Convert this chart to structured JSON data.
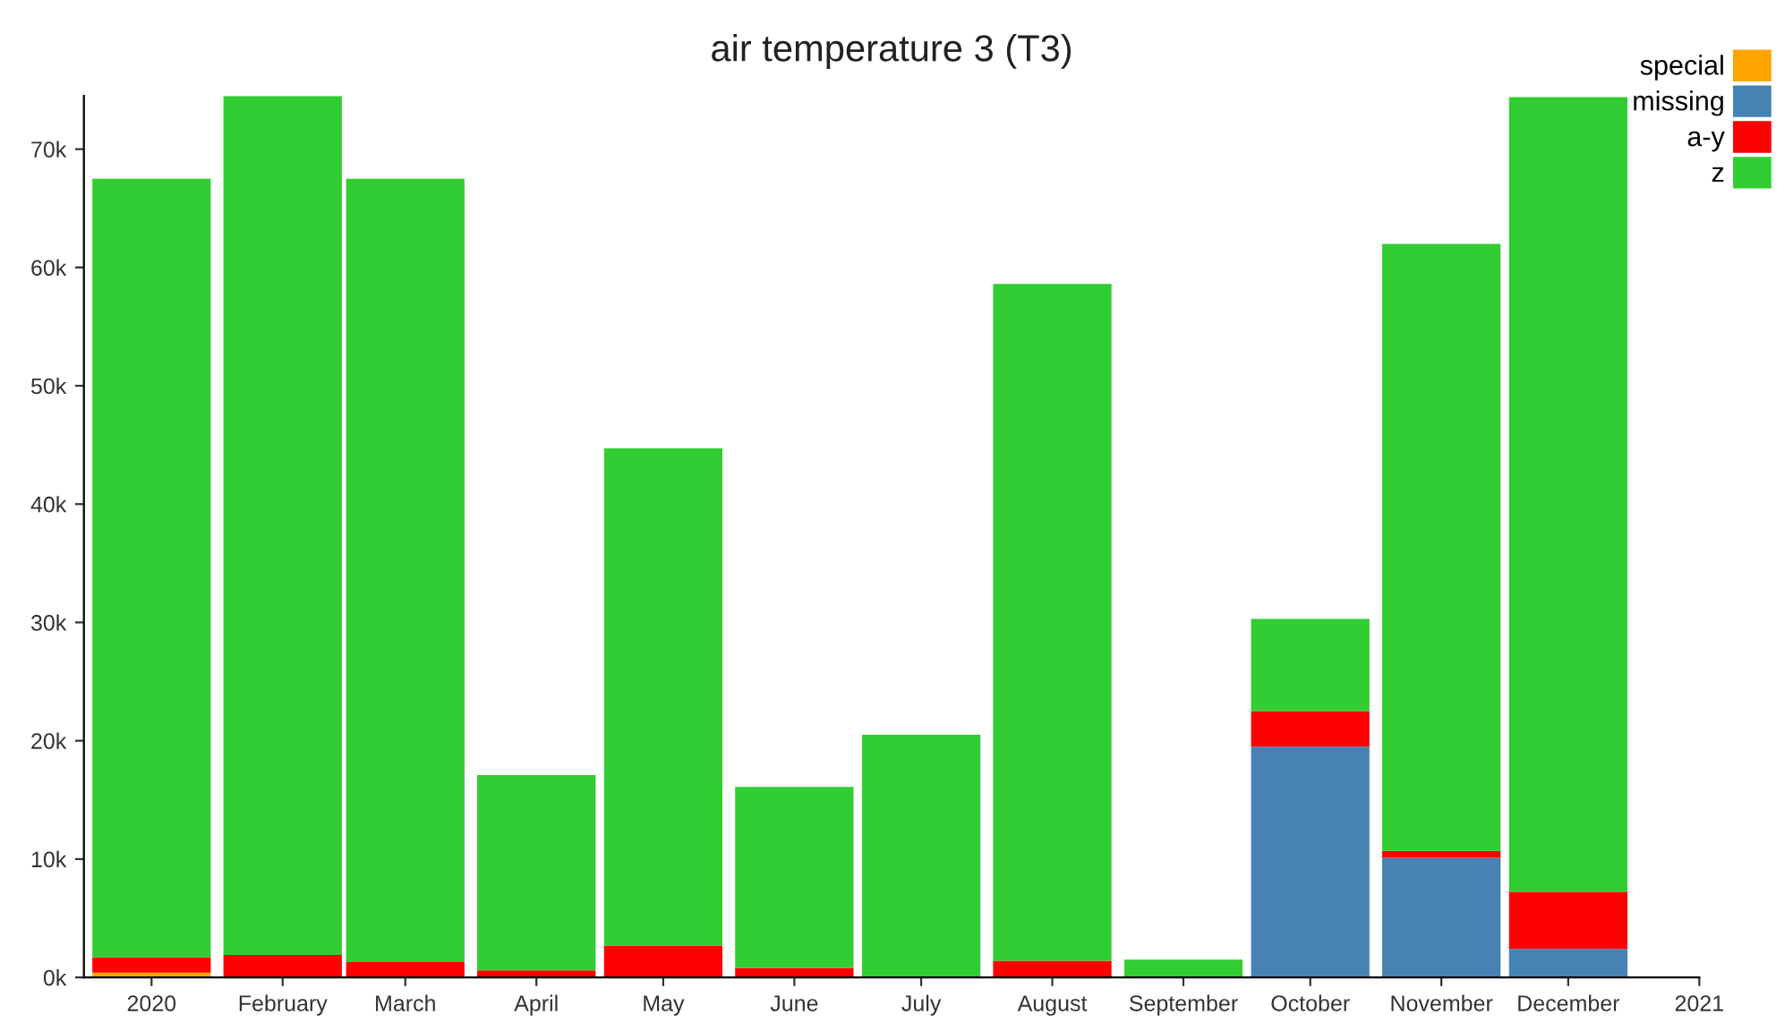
{
  "chart_data": {
    "type": "bar",
    "title": "air temperature 3 (T3)",
    "stacked": true,
    "x": [
      "2020-01",
      "2020-02",
      "2020-03",
      "2020-04",
      "2020-05",
      "2020-06",
      "2020-07",
      "2020-08",
      "2020-09",
      "2020-10",
      "2020-11",
      "2020-12"
    ],
    "series": [
      {
        "name": "special",
        "color": "#ffa500",
        "values": [
          400,
          0,
          0,
          0,
          0,
          0,
          0,
          0,
          0,
          0,
          0,
          0
        ]
      },
      {
        "name": "missing",
        "color": "#4682b4",
        "values": [
          0,
          0,
          0,
          0,
          0,
          0,
          0,
          0,
          0,
          19500,
          10100,
          2400
        ]
      },
      {
        "name": "a-y",
        "color": "#ff0000",
        "values": [
          1300,
          1900,
          1300,
          600,
          2700,
          800,
          0,
          1400,
          0,
          3000,
          600,
          4800
        ]
      },
      {
        "name": "z",
        "color": "#32cd32",
        "values": [
          65800,
          72600,
          66200,
          16500,
          42000,
          15300,
          20500,
          57200,
          1500,
          7800,
          51300,
          67200
        ]
      }
    ],
    "xlim": [
      "2019-12-16",
      "2021-01-01"
    ],
    "xticks": [
      {
        "value": "2020-01",
        "label": "2020"
      },
      {
        "value": "2020-02",
        "label": "February"
      },
      {
        "value": "2020-03",
        "label": "March"
      },
      {
        "value": "2020-04",
        "label": "April"
      },
      {
        "value": "2020-05",
        "label": "May"
      },
      {
        "value": "2020-06",
        "label": "June"
      },
      {
        "value": "2020-07",
        "label": "July"
      },
      {
        "value": "2020-08",
        "label": "August"
      },
      {
        "value": "2020-09",
        "label": "September"
      },
      {
        "value": "2020-10",
        "label": "October"
      },
      {
        "value": "2020-11",
        "label": "November"
      },
      {
        "value": "2020-12",
        "label": "December"
      },
      {
        "value": "2021-01",
        "label": "2021"
      }
    ],
    "ylim": [
      0,
      74500
    ],
    "yticks": [
      {
        "value": 0,
        "label": "0k"
      },
      {
        "value": 10000,
        "label": "10k"
      },
      {
        "value": 20000,
        "label": "20k"
      },
      {
        "value": 30000,
        "label": "30k"
      },
      {
        "value": 40000,
        "label": "40k"
      },
      {
        "value": 50000,
        "label": "50k"
      },
      {
        "value": 60000,
        "label": "60k"
      },
      {
        "value": 70000,
        "label": "70k"
      }
    ],
    "grid": false,
    "legend": "top right"
  }
}
